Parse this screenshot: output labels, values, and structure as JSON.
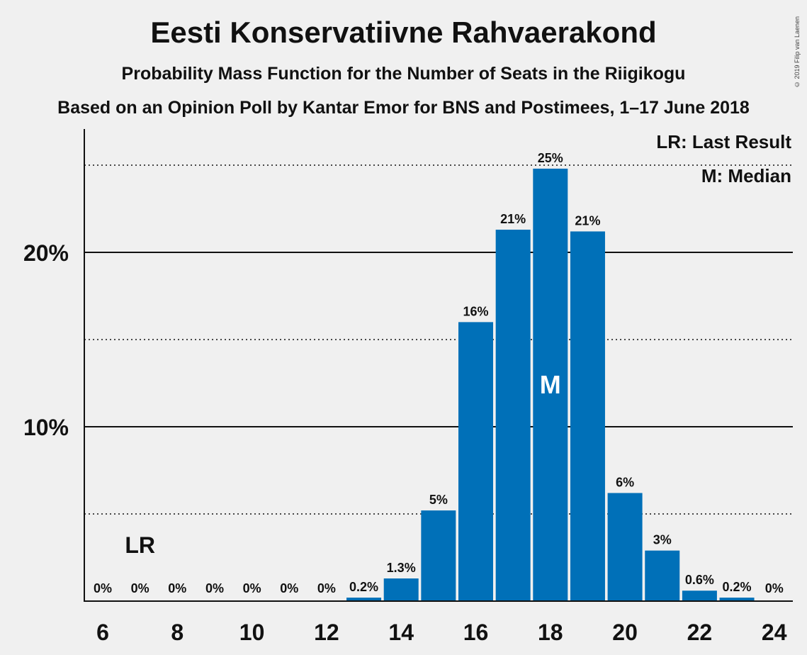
{
  "title": "Eesti Konservatiivne Rahvaerakond",
  "subtitle1": "Probability Mass Function for the Number of Seats in the Riigikogu",
  "subtitle2": "Based on an Opinion Poll by Kantar Emor for BNS and Postimees, 1–17 June 2018",
  "copyright": "© 2019 Filip van Laenen",
  "legend": {
    "last_result": "LR: Last Result",
    "median": "M: Median"
  },
  "colors": {
    "bar": "#0070b8",
    "background": "#f0f0f0",
    "text": "#111111"
  },
  "chart_data": {
    "type": "bar",
    "x": [
      6,
      7,
      8,
      9,
      10,
      11,
      12,
      13,
      14,
      15,
      16,
      17,
      18,
      19,
      20,
      21,
      22,
      23,
      24
    ],
    "values": [
      0,
      0,
      0,
      0,
      0,
      0,
      0,
      0.2,
      1.3,
      5.2,
      16.0,
      21.3,
      24.8,
      21.2,
      6.2,
      2.9,
      0.6,
      0.2,
      0
    ],
    "data_labels": [
      "0%",
      "0%",
      "0%",
      "0%",
      "0%",
      "0%",
      "0%",
      "0.2%",
      "1.3%",
      "5%",
      "16%",
      "21%",
      "25%",
      "21%",
      "6%",
      "3%",
      "0.6%",
      "0.2%",
      "0%"
    ],
    "x_ticks": [
      6,
      8,
      10,
      12,
      14,
      16,
      18,
      20,
      22,
      24
    ],
    "y_ticks": [
      {
        "value": 10,
        "label": "10%"
      },
      {
        "value": 20,
        "label": "20%"
      }
    ],
    "y_minor_gridlines": [
      5,
      15,
      25
    ],
    "ylim": [
      0,
      27
    ],
    "last_result": {
      "x": 7,
      "label": "LR"
    },
    "median": {
      "x": 18,
      "label": "M"
    },
    "legend_position": "top-right"
  }
}
